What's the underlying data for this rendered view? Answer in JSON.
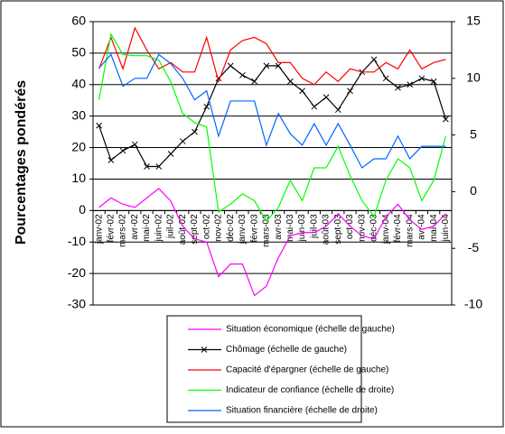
{
  "chart_data": {
    "type": "line",
    "y_label": "Pourcentages pondérés",
    "categories": [
      "janv-02",
      "févr-02",
      "mars-02",
      "avr-02",
      "mai-02",
      "juin-02",
      "juil-02",
      "août-02",
      "sept-02",
      "oct-02",
      "nov-02",
      "déc-02",
      "janv-03",
      "févr-03",
      "mars-03",
      "avr-03",
      "mai-03",
      "juin-03",
      "juil-03",
      "août-03",
      "sept-03",
      "oct-03",
      "nov-03",
      "déc-03",
      "janv-04",
      "févr-04",
      "mars-04",
      "avr-04",
      "mai-04",
      "juin-04"
    ],
    "ylim": [
      -30,
      60
    ],
    "yticks": [
      -30,
      -20,
      -10,
      0,
      10,
      20,
      30,
      40,
      50,
      60
    ],
    "y2lim": [
      -10,
      15
    ],
    "y2ticks": [
      -10,
      -5,
      0,
      5,
      10,
      15
    ],
    "grid": true,
    "legend": "bottom",
    "series": [
      {
        "name": "Situation économique (échelle de gauche)",
        "color": "#ff00ff",
        "values": [
          1,
          4,
          2,
          1,
          4,
          7,
          3,
          -5,
          -9,
          -10,
          -21,
          -17,
          -17,
          -27,
          -24,
          -15,
          -8,
          -7,
          -7,
          -5,
          -1,
          -5,
          -8,
          -9,
          -2,
          2,
          -3,
          -6,
          -5,
          -1
        ]
      },
      {
        "name": "Chômage (échelle de gauche)",
        "color": "#000000",
        "marker": "x",
        "values": [
          27,
          16,
          19,
          21,
          14,
          14,
          18,
          22,
          25,
          33,
          42,
          46,
          43,
          41,
          46,
          46,
          41,
          38,
          33,
          36,
          32,
          38,
          44,
          48,
          42,
          39,
          40,
          42,
          41,
          29
        ]
      },
      {
        "name": "Capacité d'épargner (échelle de gauche)",
        "color": "#ff0000",
        "values": [
          45,
          55,
          45,
          58,
          51,
          45,
          47,
          44,
          44,
          55,
          41,
          51,
          54,
          55,
          53,
          47,
          47,
          42,
          40,
          44,
          41,
          45,
          44,
          44,
          47,
          45,
          51,
          45,
          47,
          48
        ]
      },
      {
        "name": "Indicateur de confiance (échelle de droite)",
        "color": "#00ff00",
        "axis": "y2",
        "values": [
          8.1,
          13.9,
          12.1,
          12,
          12,
          11.6,
          9.7,
          6.9,
          6.1,
          5.7,
          -1.8,
          -1.1,
          -0.2,
          -0.8,
          -2.6,
          -1.4,
          1,
          -0.8,
          2.1,
          2.1,
          4,
          1.4,
          -0.8,
          -2.2,
          1,
          2.9,
          2.1,
          -0.8,
          1,
          4.9
        ]
      },
      {
        "name": "Situation financière (échelle de droite)",
        "color": "#0066ff",
        "axis": "y2",
        "values": [
          10.9,
          12.1,
          9.3,
          10,
          10,
          12.1,
          11.3,
          10,
          8.1,
          8.9,
          4.9,
          8,
          8,
          8,
          4.1,
          6.9,
          5.1,
          4.1,
          6,
          4.1,
          6,
          4.1,
          2.1,
          2.9,
          2.9,
          4.9,
          2.9,
          4,
          4,
          4
        ]
      }
    ]
  }
}
